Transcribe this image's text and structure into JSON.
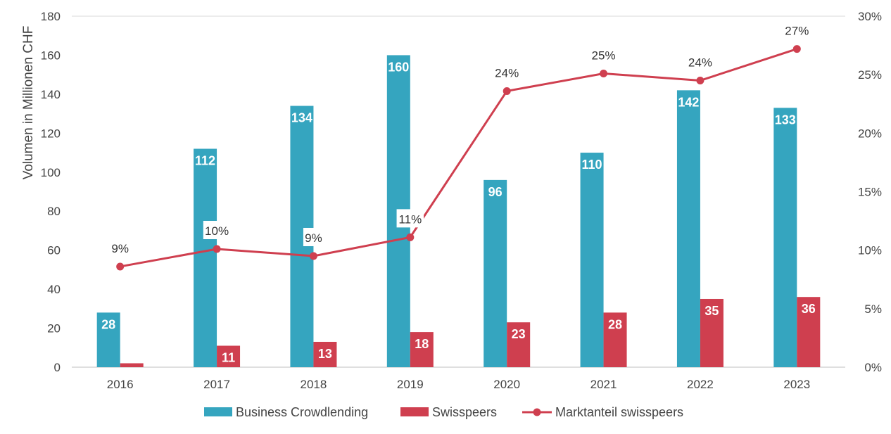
{
  "chart_data": {
    "type": "bar",
    "categories": [
      "2016",
      "2017",
      "2018",
      "2019",
      "2020",
      "2021",
      "2022",
      "2023"
    ],
    "series": [
      {
        "name": "Business Crowdlending",
        "type": "bar",
        "axis": "left",
        "color": "#35a5bf",
        "values": [
          28,
          112,
          134,
          160,
          96,
          110,
          142,
          133
        ],
        "labels": [
          "28",
          "112",
          "134",
          "160",
          "96",
          "110",
          "142",
          "133"
        ]
      },
      {
        "name": "Swisspeers",
        "type": "bar",
        "axis": "left",
        "color": "#cf3f4f",
        "values": [
          2,
          11,
          13,
          18,
          23,
          28,
          35,
          36
        ],
        "labels": [
          "",
          "11",
          "13",
          "18",
          "23",
          "28",
          "35",
          "36"
        ]
      },
      {
        "name": "Marktanteil swisspeers",
        "type": "line",
        "axis": "right",
        "color": "#cf3f4f",
        "values": [
          8.6,
          10.1,
          9.5,
          11.1,
          23.6,
          25.1,
          24.5,
          27.2
        ],
        "labels": [
          "9%",
          "10%",
          "9%",
          "11%",
          "24%",
          "25%",
          "24%",
          "27%"
        ]
      }
    ],
    "ylabel": "Volumen in Millionen CHF",
    "ylim": [
      0,
      180
    ],
    "yticks": [
      "0",
      "20",
      "40",
      "60",
      "80",
      "100",
      "120",
      "140",
      "160",
      "180"
    ],
    "y2lim": [
      0,
      30
    ],
    "y2ticks": [
      "0%",
      "5%",
      "10%",
      "15%",
      "20%",
      "25%",
      "30%"
    ],
    "grid": false,
    "legend_position": "bottom"
  }
}
